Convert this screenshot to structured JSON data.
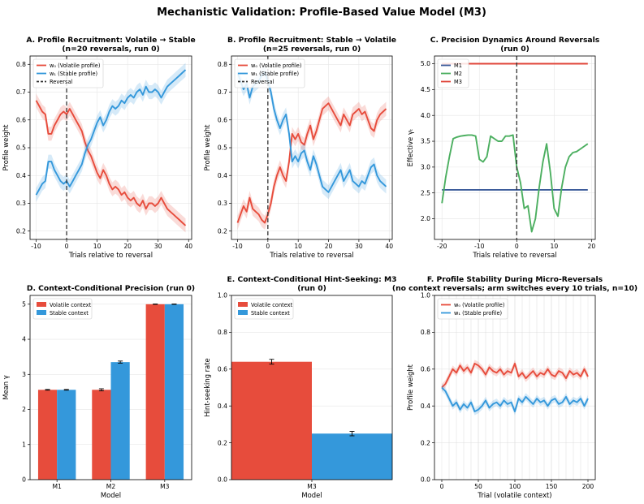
{
  "suptitle": "Mechanistic Validation: Profile-Based Value Model (M3)",
  "colors": {
    "volatile": "#e74c3c",
    "stable": "#3498db",
    "m1": "#3b5b9a",
    "m2": "#4caf60",
    "m3": "#e0453a"
  },
  "chart_data": [
    {
      "id": "A",
      "type": "line",
      "title": [
        "A. Profile Recruitment: Volatile → Stable",
        "(n=20 reversals, run 0)"
      ],
      "xlabel": "Trials relative to reversal",
      "ylabel": "Profile weight",
      "xlim": [
        -12,
        41
      ],
      "ylim": [
        0.17,
        0.83
      ],
      "xticks": [
        -10,
        0,
        10,
        20,
        30,
        40
      ],
      "yticks": [
        0.2,
        0.3,
        0.4,
        0.5,
        0.6,
        0.7,
        0.8
      ],
      "reversal_x": 0,
      "legend": [
        "w₀ (Volatile profile)",
        "w₁ (Stable profile)",
        "Reversal"
      ],
      "x_start": -10,
      "series": [
        {
          "name": "w₀ (Volatile profile)",
          "color": "#e74c3c",
          "band": 0.025,
          "values": [
            0.67,
            0.65,
            0.63,
            0.62,
            0.55,
            0.55,
            0.58,
            0.6,
            0.62,
            0.63,
            0.62,
            0.64,
            0.62,
            0.6,
            0.58,
            0.56,
            0.52,
            0.49,
            0.47,
            0.44,
            0.41,
            0.39,
            0.42,
            0.4,
            0.37,
            0.35,
            0.36,
            0.35,
            0.33,
            0.34,
            0.32,
            0.31,
            0.32,
            0.3,
            0.29,
            0.31,
            0.28,
            0.3,
            0.3,
            0.29,
            0.3,
            0.32,
            0.3,
            0.28,
            0.27,
            0.26,
            0.25,
            0.24,
            0.23,
            0.22
          ]
        },
        {
          "name": "w₁ (Stable profile)",
          "color": "#3498db",
          "band": 0.025,
          "values": [
            0.33,
            0.35,
            0.37,
            0.38,
            0.45,
            0.45,
            0.42,
            0.4,
            0.38,
            0.37,
            0.38,
            0.36,
            0.38,
            0.4,
            0.42,
            0.44,
            0.48,
            0.51,
            0.53,
            0.56,
            0.59,
            0.61,
            0.58,
            0.6,
            0.63,
            0.65,
            0.64,
            0.65,
            0.67,
            0.66,
            0.68,
            0.69,
            0.68,
            0.7,
            0.71,
            0.69,
            0.72,
            0.7,
            0.7,
            0.71,
            0.7,
            0.68,
            0.7,
            0.72,
            0.73,
            0.74,
            0.75,
            0.76,
            0.77,
            0.78
          ]
        }
      ]
    },
    {
      "id": "B",
      "type": "line",
      "title": [
        "B. Profile Recruitment: Stable → Volatile",
        "(n=25 reversals, run 0)"
      ],
      "xlabel": "Trials relative to reversal",
      "ylabel": "Profile weight",
      "xlim": [
        -12,
        41
      ],
      "ylim": [
        0.17,
        0.83
      ],
      "xticks": [
        -10,
        0,
        10,
        20,
        30,
        40
      ],
      "yticks": [
        0.2,
        0.3,
        0.4,
        0.5,
        0.6,
        0.7,
        0.8
      ],
      "reversal_x": 0,
      "legend": [
        "w₀ (Volatile profile)",
        "w₁ (Stable profile)",
        "Reversal"
      ],
      "x_start": -10,
      "series": [
        {
          "name": "w₀ (Volatile profile)",
          "color": "#e74c3c",
          "band": 0.025,
          "values": [
            0.23,
            0.26,
            0.29,
            0.27,
            0.32,
            0.28,
            0.27,
            0.26,
            0.24,
            0.23,
            0.26,
            0.3,
            0.36,
            0.4,
            0.43,
            0.4,
            0.38,
            0.45,
            0.55,
            0.53,
            0.55,
            0.52,
            0.51,
            0.55,
            0.58,
            0.53,
            0.56,
            0.6,
            0.64,
            0.65,
            0.66,
            0.64,
            0.62,
            0.6,
            0.58,
            0.62,
            0.6,
            0.58,
            0.62,
            0.63,
            0.64,
            0.62,
            0.63,
            0.6,
            0.57,
            0.56,
            0.6,
            0.62,
            0.63,
            0.64
          ]
        },
        {
          "name": "w₁ (Stable profile)",
          "color": "#3498db",
          "band": 0.025,
          "values": [
            0.77,
            0.74,
            0.71,
            0.73,
            0.68,
            0.72,
            0.73,
            0.74,
            0.76,
            0.77,
            0.74,
            0.7,
            0.64,
            0.6,
            0.57,
            0.6,
            0.62,
            0.55,
            0.45,
            0.47,
            0.45,
            0.48,
            0.49,
            0.45,
            0.42,
            0.47,
            0.44,
            0.4,
            0.36,
            0.35,
            0.34,
            0.36,
            0.38,
            0.4,
            0.42,
            0.38,
            0.4,
            0.42,
            0.38,
            0.37,
            0.36,
            0.38,
            0.37,
            0.4,
            0.43,
            0.44,
            0.4,
            0.38,
            0.37,
            0.36
          ]
        }
      ]
    },
    {
      "id": "C",
      "type": "line",
      "title": [
        "C. Precision Dynamics Around Reversals",
        "(run 0)"
      ],
      "xlabel": "Trials relative to reversal",
      "ylabel": "Effective γₜ",
      "xlim": [
        -22,
        21
      ],
      "ylim": [
        1.6,
        5.15
      ],
      "xticks": [
        -20,
        -10,
        0,
        10,
        20
      ],
      "yticks": [
        2.0,
        2.5,
        3.0,
        3.5,
        4.0,
        4.5,
        5.0
      ],
      "reversal_x": 0,
      "legend": [
        "M1",
        "M2",
        "M3"
      ],
      "x_start": -20,
      "series": [
        {
          "name": "M1",
          "color": "#3b5b9a",
          "values": [
            2.56,
            2.56,
            2.56,
            2.56,
            2.56,
            2.56,
            2.56,
            2.56,
            2.56,
            2.56,
            2.56,
            2.56,
            2.56,
            2.56,
            2.56,
            2.56,
            2.56,
            2.56,
            2.56,
            2.56,
            2.56,
            2.56,
            2.56,
            2.56,
            2.56,
            2.56,
            2.56,
            2.56,
            2.56,
            2.56,
            2.56,
            2.56,
            2.56,
            2.56,
            2.56,
            2.56,
            2.56,
            2.56,
            2.56,
            2.56
          ]
        },
        {
          "name": "M2",
          "color": "#4caf60",
          "values": [
            2.3,
            2.8,
            3.2,
            3.55,
            3.58,
            3.6,
            3.61,
            3.62,
            3.62,
            3.6,
            3.15,
            3.1,
            3.2,
            3.6,
            3.55,
            3.5,
            3.5,
            3.6,
            3.6,
            3.62,
            3.0,
            2.7,
            2.2,
            2.25,
            1.75,
            2.0,
            2.6,
            3.1,
            3.45,
            2.9,
            2.2,
            2.05,
            2.6,
            3.0,
            3.2,
            3.28,
            3.3,
            3.35,
            3.4,
            3.45
          ]
        },
        {
          "name": "M3",
          "color": "#e0453a",
          "values": [
            5.0,
            5.0,
            5.0,
            5.0,
            5.0,
            5.0,
            5.0,
            5.0,
            5.0,
            5.0,
            5.0,
            5.0,
            5.0,
            5.0,
            5.0,
            5.0,
            5.0,
            5.0,
            5.0,
            5.0,
            5.0,
            5.0,
            5.0,
            5.0,
            5.0,
            5.0,
            5.0,
            5.0,
            5.0,
            5.0,
            5.0,
            5.0,
            5.0,
            5.0,
            5.0,
            5.0,
            5.0,
            5.0,
            5.0,
            5.0
          ]
        }
      ]
    },
    {
      "id": "D",
      "type": "bar",
      "title": [
        "D. Context-Conditional Precision (run 0)"
      ],
      "xlabel": "Model",
      "ylabel": "Mean γ",
      "ylim": [
        0,
        5.25
      ],
      "yticks": [
        0,
        1,
        2,
        3,
        4,
        5
      ],
      "categories": [
        "M1",
        "M2",
        "M3"
      ],
      "legend": [
        "Volatile context",
        "Stable context"
      ],
      "series": [
        {
          "name": "Volatile context",
          "color": "#e74c3c",
          "values": [
            2.56,
            2.56,
            5.0
          ],
          "errors": [
            0.01,
            0.03,
            0.005
          ]
        },
        {
          "name": "Stable context",
          "color": "#3498db",
          "values": [
            2.56,
            3.35,
            5.0
          ],
          "errors": [
            0.01,
            0.03,
            0.005
          ]
        }
      ]
    },
    {
      "id": "E",
      "type": "bar",
      "title": [
        "E. Context-Conditional Hint-Seeking: M3",
        "(run 0)"
      ],
      "xlabel": "Model",
      "ylabel": "Hint-seeking rate",
      "ylim": [
        0,
        1.0
      ],
      "yticks": [
        0.0,
        0.2,
        0.4,
        0.6,
        0.8,
        1.0
      ],
      "categories": [
        "M3"
      ],
      "legend": [
        "Volatile context",
        "Stable context"
      ],
      "series": [
        {
          "name": "Volatile context",
          "color": "#e74c3c",
          "values": [
            0.64
          ],
          "errors": [
            0.013
          ]
        },
        {
          "name": "Stable context",
          "color": "#3498db",
          "values": [
            0.25
          ],
          "errors": [
            0.012
          ]
        }
      ]
    },
    {
      "id": "F",
      "type": "line",
      "title": [
        "F. Profile Stability During Micro-Reversals",
        "(no context reversals; arm switches every 10 trials, n=10)"
      ],
      "xlabel": "Trial (volatile context)",
      "ylabel": "Profile weight",
      "xlim": [
        -10,
        210
      ],
      "ylim": [
        0.0,
        1.0
      ],
      "xticks": [
        0,
        50,
        100,
        150,
        200
      ],
      "yticks": [
        0.0,
        0.2,
        0.4,
        0.6,
        0.8,
        1.0
      ],
      "switch_every": 10,
      "legend": [
        "w₀ (Volatile profile)",
        "w₁ (Stable profile)"
      ],
      "series": [
        {
          "name": "w₀ (Volatile profile)",
          "color": "#e74c3c",
          "band": 0.02,
          "x": [
            0,
            5,
            10,
            15,
            20,
            25,
            30,
            35,
            40,
            45,
            50,
            55,
            60,
            65,
            70,
            75,
            80,
            85,
            90,
            95,
            100,
            105,
            110,
            115,
            120,
            125,
            130,
            135,
            140,
            145,
            150,
            155,
            160,
            165,
            170,
            175,
            180,
            185,
            190,
            195,
            200
          ],
          "values": [
            0.5,
            0.52,
            0.56,
            0.6,
            0.58,
            0.62,
            0.59,
            0.61,
            0.58,
            0.63,
            0.62,
            0.6,
            0.57,
            0.61,
            0.59,
            0.58,
            0.6,
            0.57,
            0.59,
            0.58,
            0.63,
            0.56,
            0.58,
            0.55,
            0.57,
            0.59,
            0.56,
            0.58,
            0.57,
            0.6,
            0.57,
            0.56,
            0.59,
            0.58,
            0.55,
            0.59,
            0.57,
            0.58,
            0.56,
            0.6,
            0.56
          ]
        },
        {
          "name": "w₁ (Stable profile)",
          "color": "#3498db",
          "band": 0.02,
          "x": [
            0,
            5,
            10,
            15,
            20,
            25,
            30,
            35,
            40,
            45,
            50,
            55,
            60,
            65,
            70,
            75,
            80,
            85,
            90,
            95,
            100,
            105,
            110,
            115,
            120,
            125,
            130,
            135,
            140,
            145,
            150,
            155,
            160,
            165,
            170,
            175,
            180,
            185,
            190,
            195,
            200
          ],
          "values": [
            0.5,
            0.48,
            0.44,
            0.4,
            0.42,
            0.38,
            0.41,
            0.39,
            0.42,
            0.37,
            0.38,
            0.4,
            0.43,
            0.39,
            0.41,
            0.42,
            0.4,
            0.43,
            0.41,
            0.42,
            0.37,
            0.44,
            0.42,
            0.45,
            0.43,
            0.41,
            0.44,
            0.42,
            0.43,
            0.4,
            0.43,
            0.44,
            0.41,
            0.42,
            0.45,
            0.41,
            0.43,
            0.42,
            0.44,
            0.4,
            0.44
          ]
        }
      ]
    }
  ]
}
